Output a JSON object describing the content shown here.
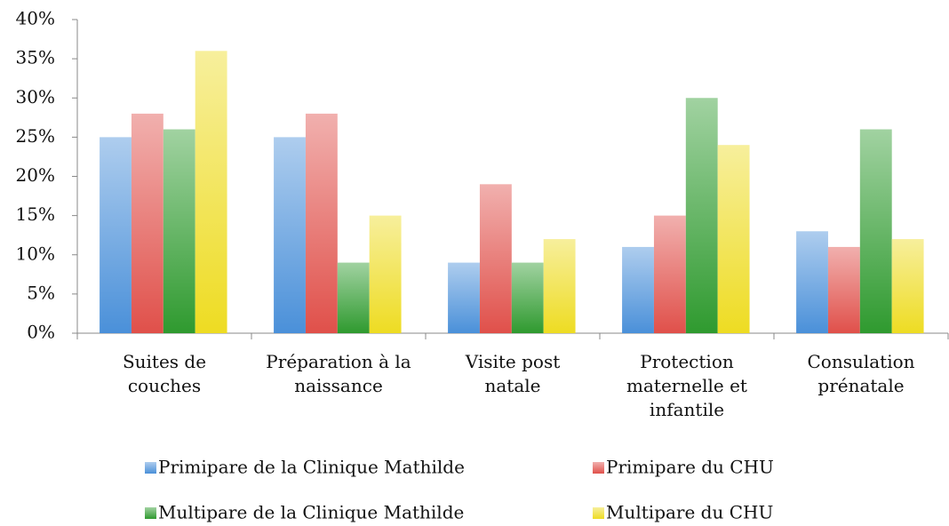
{
  "chart_data": {
    "type": "bar",
    "categories": [
      "Suites de couches",
      "Préparation à la naissance",
      "Visite post natale",
      "Protection maternelle et infantile",
      "Consulation prénatale"
    ],
    "series": [
      {
        "name": "Primipare de la Clinique Mathilde",
        "color": "#4a90d9",
        "values": [
          25,
          25,
          9,
          11,
          13
        ]
      },
      {
        "name": "Primipare du CHU",
        "color": "#e0504a",
        "values": [
          28,
          28,
          19,
          15,
          11
        ]
      },
      {
        "name": "Multipare de la Clinique Mathilde",
        "color": "#2f9a2f",
        "values": [
          26,
          9,
          9,
          30,
          26
        ]
      },
      {
        "name": "Multipare du CHU",
        "color": "#eedc22",
        "values": [
          36,
          15,
          12,
          24,
          12
        ]
      }
    ],
    "ylim": [
      0,
      40
    ],
    "yticks": [
      {
        "value": 0,
        "label": "0%"
      },
      {
        "value": 5,
        "label": "5%"
      },
      {
        "value": 10,
        "label": "10%"
      },
      {
        "value": 15,
        "label": "15%"
      },
      {
        "value": 20,
        "label": "20%"
      },
      {
        "value": 25,
        "label": "25%"
      },
      {
        "value": 30,
        "label": "30%"
      },
      {
        "value": 35,
        "label": "35%"
      },
      {
        "value": 40,
        "label": "40%"
      }
    ],
    "grid": false,
    "legend": "bottom"
  }
}
